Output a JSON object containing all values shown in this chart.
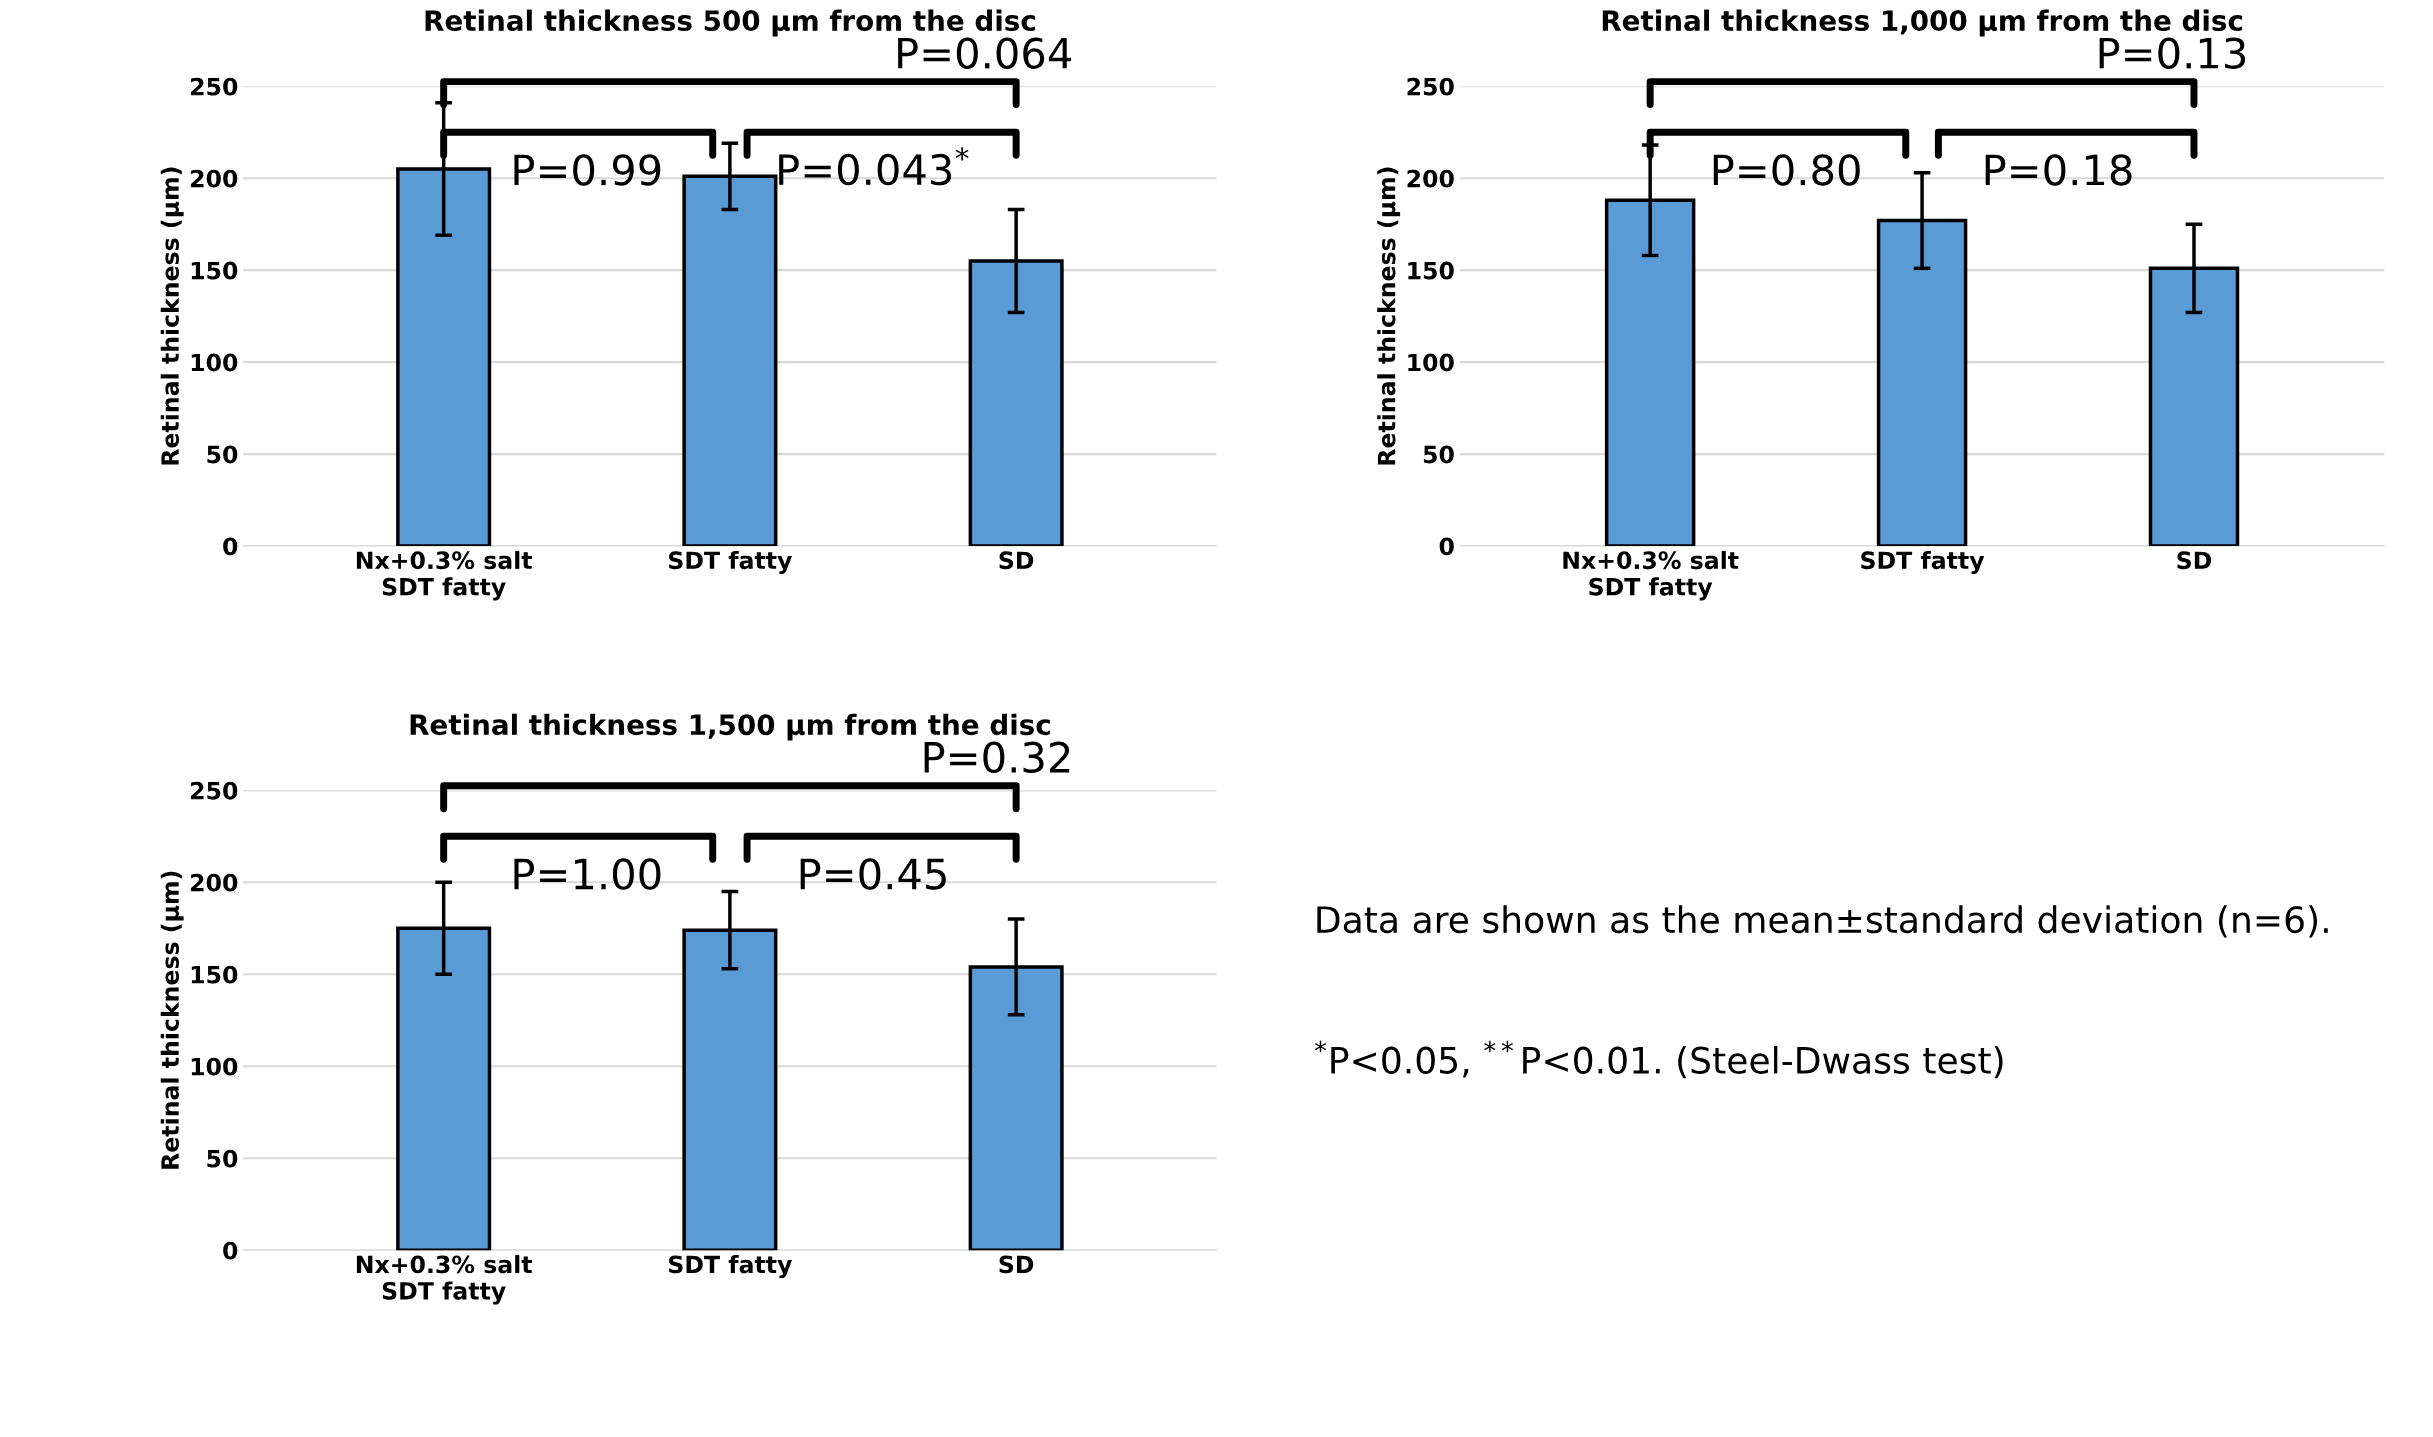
{
  "chart_data": [
    {
      "type": "bar",
      "title": "Retinal thickness 500 µm from the disc",
      "ylabel": "Retinal thickness (µm)",
      "categories": [
        "Nx+0.3% salt\nSDT fatty",
        "SDT fatty",
        "SD"
      ],
      "values": [
        205,
        201,
        155
      ],
      "errors": [
        36,
        18,
        28
      ],
      "color": "#5b9bd5",
      "ylim": [
        0,
        250
      ],
      "yticks": [
        0,
        50,
        100,
        150,
        200,
        250
      ],
      "grid": "y",
      "annotations": [
        "P=0.99",
        "P=0.043$^{*}$",
        "P=0.064"
      ]
    },
    {
      "type": "bar",
      "title": "Retinal thickness 1,000 µm from the disc",
      "ylabel": "Retinal thickness (µm)",
      "categories": [
        "Nx+0.3% salt\nSDT fatty",
        "SDT fatty",
        "SD"
      ],
      "values": [
        188,
        177,
        151
      ],
      "errors": [
        30,
        26,
        24
      ],
      "color": "#5b9bd5",
      "ylim": [
        0,
        250
      ],
      "yticks": [
        0,
        50,
        100,
        150,
        200,
        250
      ],
      "grid": "y",
      "annotations": [
        "P=0.80",
        "P=0.18",
        "P=0.13"
      ]
    },
    {
      "type": "bar",
      "title": "Retinal thickness 1,500 µm from the disc",
      "ylabel": "Retinal thickness (µm)",
      "categories": [
        "Nx+0.3% salt\nSDT fatty",
        "SDT fatty",
        "SD"
      ],
      "values": [
        175,
        174,
        154
      ],
      "errors": [
        25,
        21,
        26
      ],
      "color": "#5b9bd5",
      "ylim": [
        0,
        250
      ],
      "yticks": [
        0,
        50,
        100,
        150,
        200,
        250
      ],
      "grid": "y",
      "annotations": [
        "P=1.00",
        "P=0.45",
        "P=0.32"
      ]
    },
    {
      "type": "other",
      "annotations": [
        "Data are shown as the mean±standard deviation (n=6).",
        "$^{*}$P<0.05, $^{**}$P<0.01. (Steel-Dwass test)"
      ]
    }
  ]
}
